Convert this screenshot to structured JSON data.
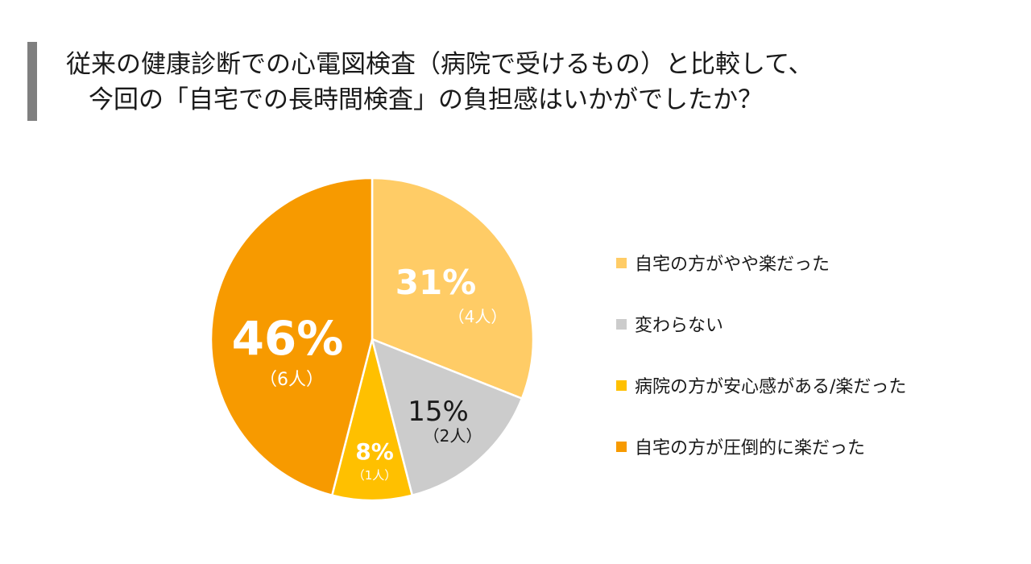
{
  "title": {
    "line1": "従来の健康診断での心電図検査（病院で受けるもの）と比較して、",
    "line2": "今回の「自宅での長時間検査」の負担感はいかがでしたか？"
  },
  "chart_data": {
    "type": "pie",
    "title": "",
    "legend_position": "right",
    "slices": [
      {
        "label": "自宅の方がやや楽だった",
        "percent": 31,
        "pct_label": "31%",
        "count_label": "（4人）",
        "color": "#FFCC66"
      },
      {
        "label": "変わらない",
        "percent": 15,
        "pct_label": "15%",
        "count_label": "（2人）",
        "color": "#CCCCCC"
      },
      {
        "label": "病院の方が安心感がある/楽だった",
        "percent": 8,
        "pct_label": "8%",
        "count_label": "（1人）",
        "color": "#FFC000"
      },
      {
        "label": "自宅の方が圧倒的に楽だった",
        "percent": 46,
        "pct_label": "46%",
        "count_label": "（6人）",
        "color": "#F79A00"
      }
    ]
  }
}
